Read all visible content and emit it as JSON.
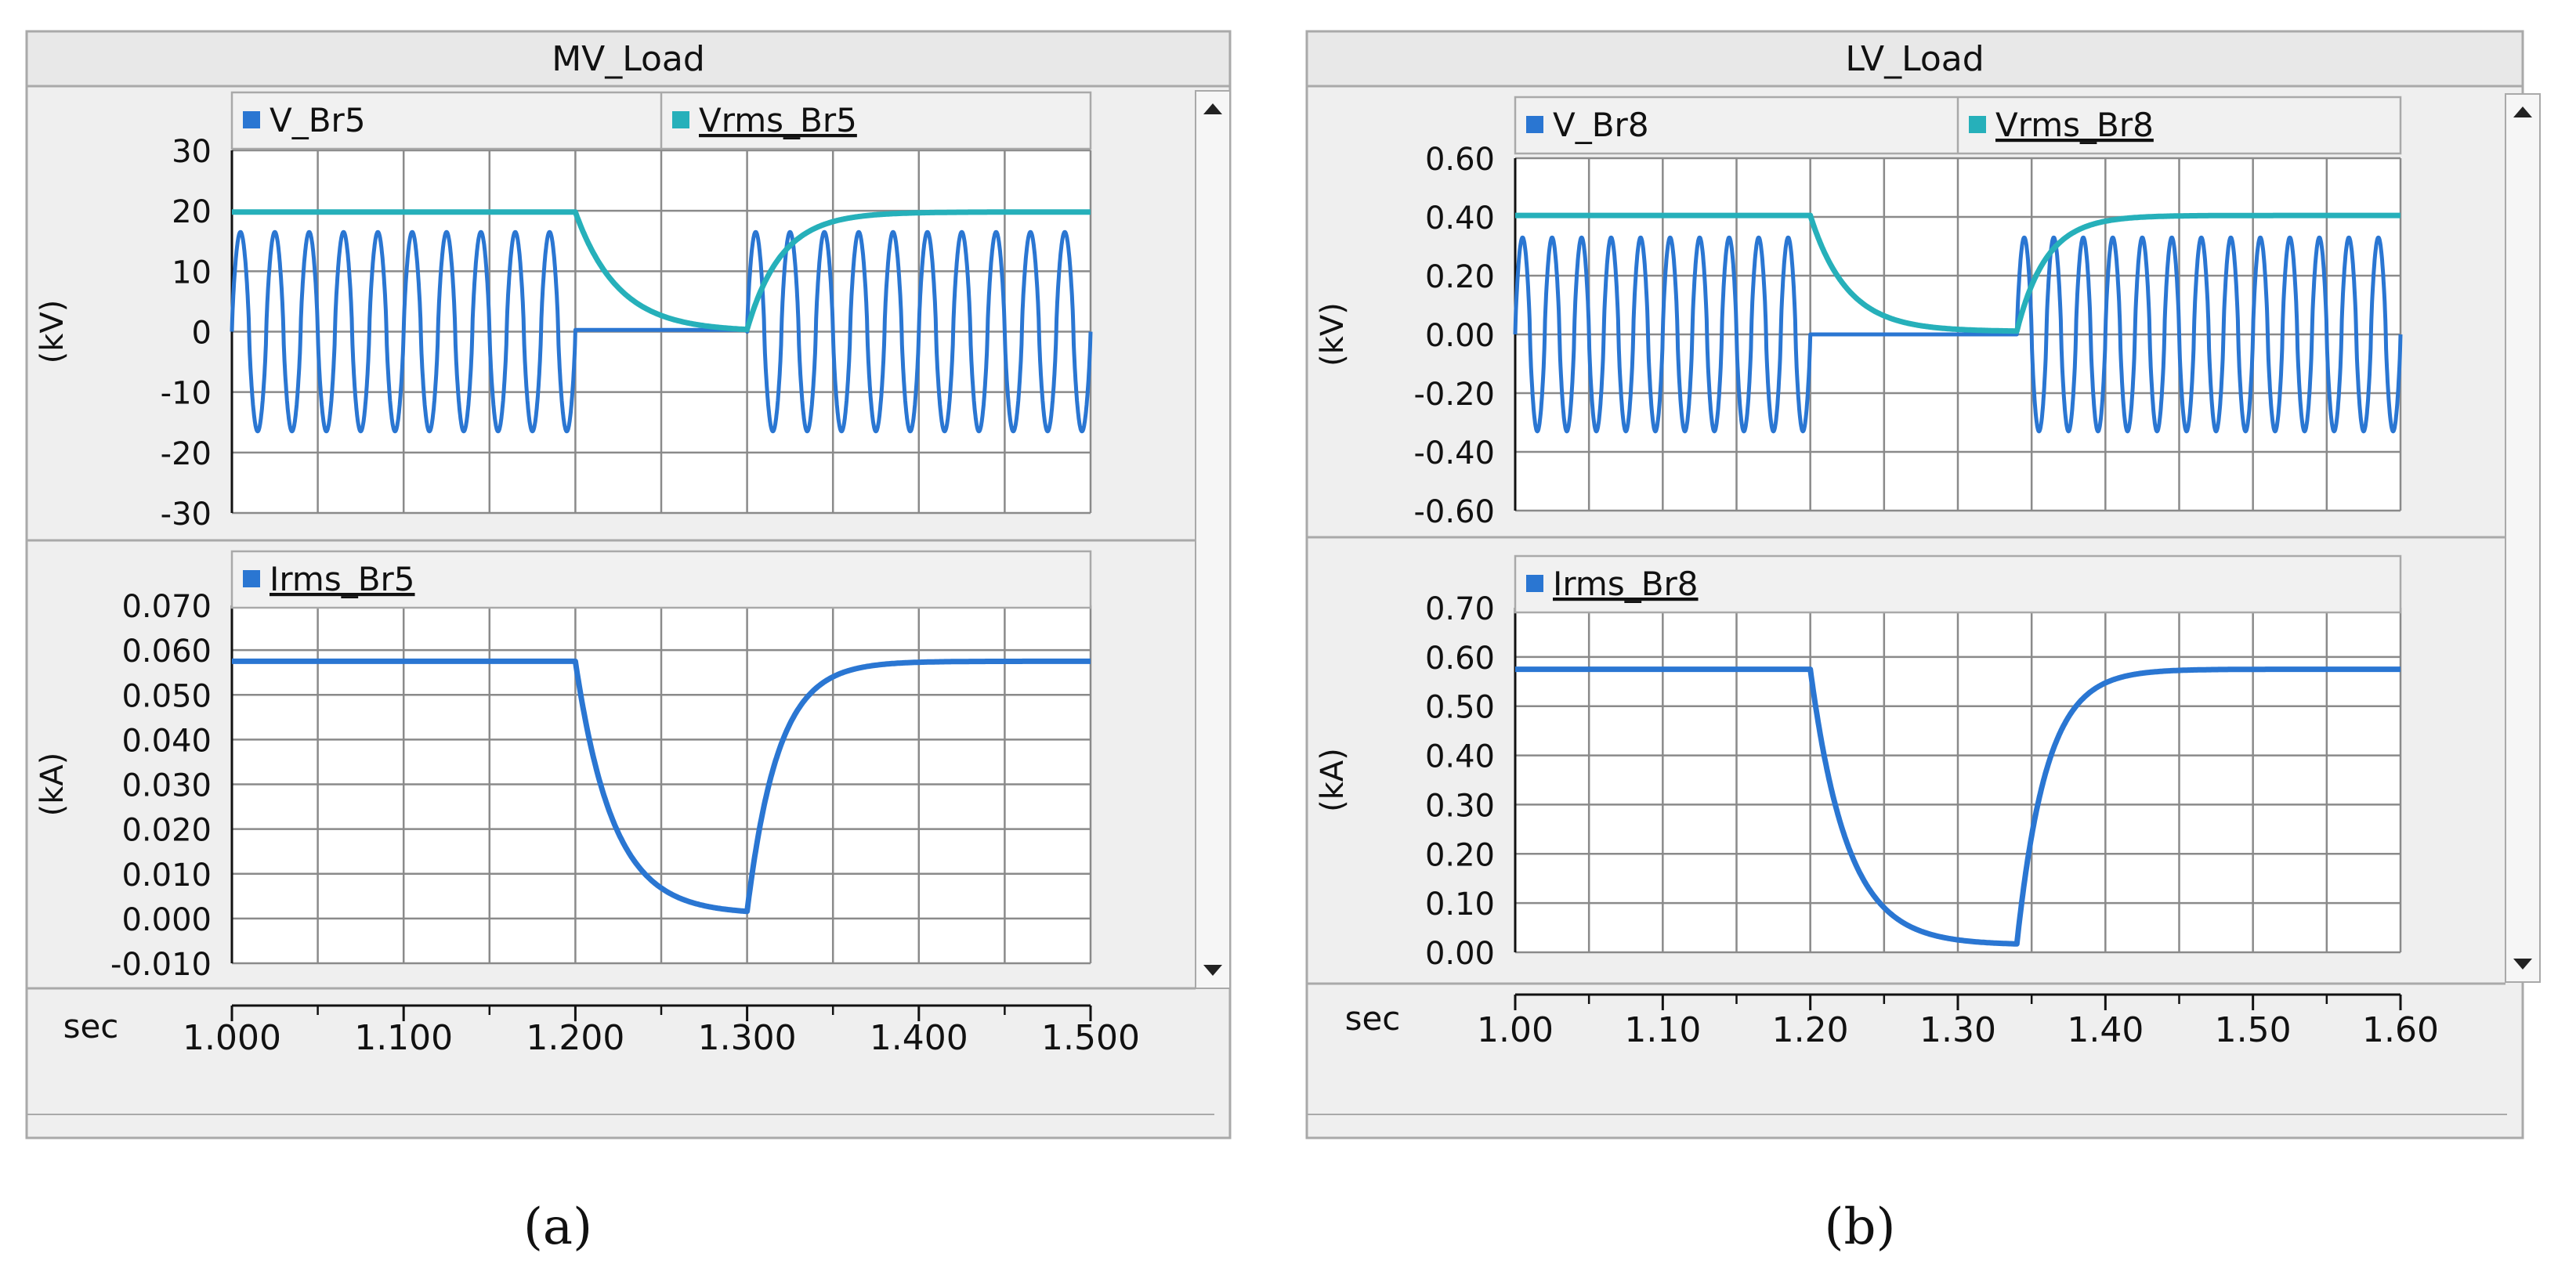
{
  "figure_labels": [
    "(a)",
    "(b)"
  ],
  "colors": {
    "series_main": "#2a76d2",
    "series_rms": "#26b0ba",
    "grid": "#8a8a8a",
    "panel_bg": "#efefef",
    "border": "#a9a9a9",
    "text": "#111111"
  },
  "panels": [
    {
      "title": "MV_Load",
      "time_label": "sec",
      "x_ticks": [
        "1.000",
        "1.100",
        "1.200",
        "1.300",
        "1.400",
        "1.500"
      ],
      "plots": [
        {
          "unit": "(kV)",
          "legend": [
            "V_Br5",
            "Vrms_Br5"
          ],
          "y_ticks": [
            "30",
            "20",
            "10",
            "0",
            "-10",
            "-20",
            "-30"
          ]
        },
        {
          "unit": "(kA)",
          "legend": [
            "Irms_Br5"
          ],
          "y_ticks": [
            "0.070",
            "0.060",
            "0.050",
            "0.040",
            "0.030",
            "0.020",
            "0.010",
            "0.000",
            "-0.010"
          ]
        }
      ]
    },
    {
      "title": "LV_Load",
      "time_label": "sec",
      "x_ticks": [
        "1.00",
        "1.10",
        "1.20",
        "1.30",
        "1.40",
        "1.50",
        "1.60"
      ],
      "plots": [
        {
          "unit": "(kV)",
          "legend": [
            "V_Br8",
            "Vrms_Br8"
          ],
          "y_ticks": [
            "0.60",
            "0.40",
            "0.20",
            "0.00",
            "-0.20",
            "-0.40",
            "-0.60"
          ]
        },
        {
          "unit": "(kA)",
          "legend": [
            "Irms_Br8"
          ],
          "y_ticks": [
            "0.70",
            "0.60",
            "0.50",
            "0.40",
            "0.30",
            "0.20",
            "0.10",
            "0.00"
          ]
        }
      ]
    }
  ],
  "chart_data": [
    {
      "type": "line",
      "title": "MV_Load",
      "xlabel": "sec",
      "ylabel": "(kV)",
      "xlim": [
        1.0,
        1.5
      ],
      "ylim": [
        -30,
        30
      ],
      "series": [
        {
          "name": "V_Br5",
          "kind": "sine_with_outage",
          "amplitude": 16.5,
          "frequency_hz": 50,
          "outage_start": 1.2,
          "outage_end": 1.3,
          "outage_level": 0.3
        },
        {
          "name": "Vrms_Br5",
          "kind": "rms_envelope",
          "steady": 19.8,
          "drop_start": 1.2,
          "recover_start": 1.3,
          "decay_tau": 0.025,
          "rise_tau": 0.02,
          "min_level": 0.0
        }
      ]
    },
    {
      "type": "line",
      "title": "MV_Load",
      "xlabel": "sec",
      "ylabel": "(kA)",
      "xlim": [
        1.0,
        1.5
      ],
      "ylim": [
        -0.01,
        0.07
      ],
      "series": [
        {
          "name": "Irms_Br5",
          "kind": "rms_envelope",
          "steady": 0.0575,
          "drop_start": 1.2,
          "recover_start": 1.3,
          "decay_tau": 0.022,
          "rise_tau": 0.018,
          "min_level": 0.001
        }
      ]
    },
    {
      "type": "line",
      "title": "LV_Load",
      "xlabel": "sec",
      "ylabel": "(kV)",
      "xlim": [
        1.0,
        1.6
      ],
      "ylim": [
        -0.6,
        0.6
      ],
      "series": [
        {
          "name": "V_Br8",
          "kind": "sine_with_outage",
          "amplitude": 0.33,
          "frequency_hz": 50,
          "outage_start": 1.2,
          "outage_end": 1.34,
          "outage_level": 0.0
        },
        {
          "name": "Vrms_Br8",
          "kind": "rms_envelope",
          "steady": 0.405,
          "drop_start": 1.2,
          "recover_start": 1.34,
          "decay_tau": 0.025,
          "rise_tau": 0.02,
          "min_level": 0.01
        }
      ]
    },
    {
      "type": "line",
      "title": "LV_Load",
      "xlabel": "sec",
      "ylabel": "(kA)",
      "xlim": [
        1.0,
        1.6
      ],
      "ylim": [
        0.0,
        0.7
      ],
      "series": [
        {
          "name": "Irms_Br8",
          "kind": "rms_envelope",
          "steady": 0.575,
          "drop_start": 1.2,
          "recover_start": 1.34,
          "decay_tau": 0.025,
          "rise_tau": 0.02,
          "min_level": 0.015
        }
      ]
    }
  ]
}
